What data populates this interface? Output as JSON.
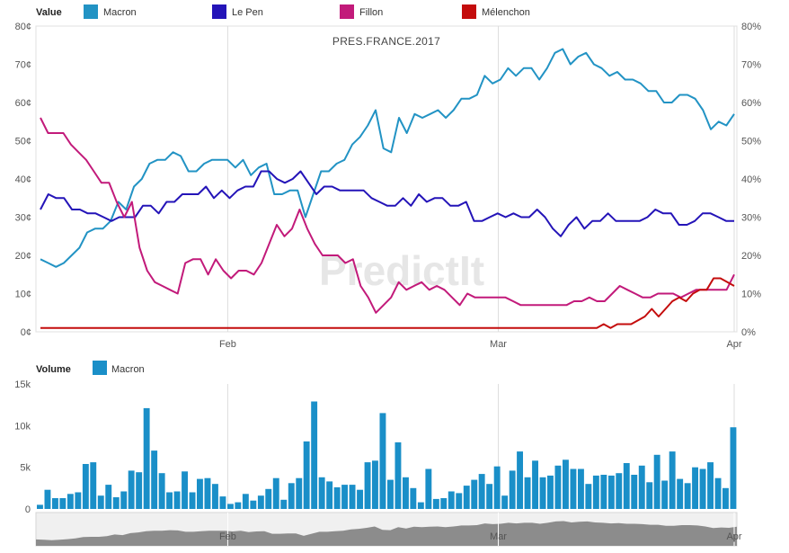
{
  "legend": {
    "value_title": "Value",
    "volume_title": "Volume"
  },
  "watermark": "PredictIt",
  "chart_data": [
    {
      "type": "line",
      "title": "PRES.FRANCE.2017",
      "legend_placement": "top",
      "x_ticks": [
        "Feb",
        "Mar",
        "Apr"
      ],
      "x_tick_index": [
        27,
        66,
        100
      ],
      "ylim": [
        0,
        80
      ],
      "y_ticks_left": [
        "0¢",
        "10¢",
        "20¢",
        "30¢",
        "40¢",
        "50¢",
        "60¢",
        "70¢",
        "80¢"
      ],
      "y_ticks_right": [
        "0%",
        "10%",
        "20%",
        "30%",
        "40%",
        "50%",
        "60%",
        "70%",
        "80%"
      ],
      "grid": "vertical",
      "series": [
        {
          "name": "Macron",
          "color": "#2293c4",
          "values": [
            19,
            18,
            17,
            18,
            20,
            22,
            26,
            27,
            27,
            29,
            34,
            32,
            38,
            40,
            44,
            45,
            45,
            47,
            46,
            42,
            42,
            44,
            45,
            45,
            45,
            43,
            45,
            41,
            43,
            44,
            36,
            36,
            37,
            37,
            30,
            36,
            42,
            42,
            44,
            45,
            49,
            51,
            54,
            58,
            48,
            47,
            56,
            52,
            57,
            56,
            57,
            58,
            56,
            58,
            61,
            61,
            62,
            67,
            65,
            66,
            69,
            67,
            69,
            69,
            66,
            69,
            73,
            74,
            70,
            72,
            73,
            70,
            69,
            67,
            68,
            66,
            66,
            65,
            63,
            63,
            60,
            60,
            62,
            62,
            61,
            58,
            53,
            55,
            54,
            57
          ]
        },
        {
          "name": "Le Pen",
          "color": "#2414b8",
          "values": [
            32,
            36,
            35,
            35,
            32,
            32,
            31,
            31,
            30,
            29,
            30,
            30,
            30,
            33,
            33,
            31,
            34,
            34,
            36,
            36,
            36,
            38,
            35,
            37,
            35,
            37,
            38,
            38,
            42,
            42,
            40,
            39,
            40,
            42,
            39,
            36,
            38,
            38,
            37,
            37,
            37,
            37,
            35,
            34,
            33,
            33,
            35,
            33,
            36,
            34,
            35,
            35,
            33,
            33,
            34,
            29,
            29,
            30,
            31,
            30,
            31,
            30,
            30,
            32,
            30,
            27,
            25,
            28,
            30,
            27,
            29,
            29,
            31,
            29,
            29,
            29,
            29,
            30,
            32,
            31,
            31,
            28,
            28,
            29,
            31,
            31,
            30,
            29,
            29
          ]
        },
        {
          "name": "Fillon",
          "color": "#c21a7a",
          "values": [
            56,
            52,
            52,
            52,
            49,
            47,
            45,
            42,
            39,
            39,
            34,
            30,
            34,
            22,
            16,
            13,
            12,
            11,
            10,
            18,
            19,
            19,
            15,
            19,
            16,
            14,
            16,
            16,
            15,
            18,
            23,
            28,
            25,
            27,
            32,
            27,
            23,
            20,
            20,
            20,
            18,
            19,
            12,
            9,
            5,
            7,
            9,
            13,
            11,
            12,
            13,
            11,
            12,
            11,
            9,
            7,
            10,
            9,
            9,
            9,
            9,
            9,
            8,
            7,
            7,
            7,
            7,
            7,
            7,
            7,
            8,
            8,
            9,
            8,
            8,
            10,
            12,
            11,
            10,
            9,
            9,
            10,
            10,
            10,
            9,
            10,
            11,
            11,
            11,
            11,
            11,
            15
          ]
        },
        {
          "name": "Mélenchon",
          "color": "#c40c0c",
          "values": [
            1,
            1,
            1,
            1,
            1,
            1,
            1,
            1,
            1,
            1,
            1,
            1,
            1,
            1,
            1,
            1,
            1,
            1,
            1,
            1,
            1,
            1,
            1,
            1,
            1,
            1,
            1,
            1,
            1,
            1,
            1,
            1,
            1,
            1,
            1,
            1,
            1,
            1,
            1,
            1,
            1,
            1,
            1,
            1,
            1,
            1,
            1,
            1,
            1,
            1,
            1,
            1,
            1,
            1,
            1,
            1,
            1,
            1,
            1,
            1,
            1,
            1,
            1,
            1,
            1,
            1,
            1,
            1,
            1,
            1,
            1,
            1,
            1,
            1,
            1,
            1,
            1,
            1,
            1,
            1,
            1,
            1,
            2,
            1,
            2,
            2,
            2,
            3,
            4,
            6,
            4,
            6,
            8,
            9,
            8,
            10,
            11,
            11,
            14,
            14,
            13,
            12
          ]
        }
      ]
    },
    {
      "type": "bar",
      "title": "",
      "legend_placement": "top-left",
      "x_ticks": [
        "Feb",
        "Mar",
        "Apr"
      ],
      "x_tick_index": [
        27,
        66,
        100
      ],
      "ylim": [
        0,
        15000
      ],
      "y_ticks": [
        "0",
        "5k",
        "10k",
        "15k"
      ],
      "series": [
        {
          "name": "Macron",
          "color": "#1a8fc8",
          "values": [
            500,
            2300,
            1300,
            1300,
            1800,
            2000,
            5400,
            5600,
            1600,
            2900,
            1400,
            2100,
            4600,
            4400,
            12100,
            7000,
            4300,
            2000,
            2100,
            4500,
            2000,
            3600,
            3700,
            3000,
            1500,
            600,
            800,
            1800,
            1000,
            1600,
            2400,
            3700,
            1100,
            3100,
            3700,
            8100,
            12900,
            3800,
            3300,
            2600,
            2900,
            2900,
            2300,
            5600,
            5800,
            11500,
            3500,
            8000,
            3800,
            2500,
            800,
            4800,
            1200,
            1300,
            2100,
            1900,
            2800,
            3500,
            4200,
            3000,
            5100,
            1600,
            4600,
            6900,
            3800,
            5800,
            3800,
            4000,
            5200,
            5900,
            4800,
            4800,
            3000,
            4000,
            4100,
            4000,
            4300,
            5500,
            4100,
            5200,
            3200,
            6500,
            3400,
            6900,
            3600,
            3100,
            5000,
            4800,
            5600,
            3700,
            2500,
            9800
          ]
        }
      ]
    }
  ]
}
